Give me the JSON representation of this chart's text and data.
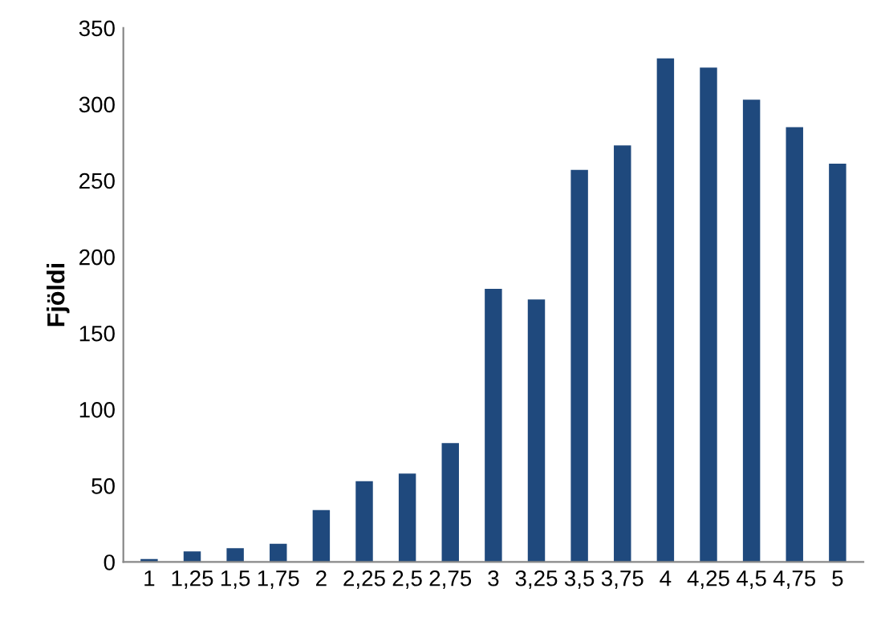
{
  "chart_data": {
    "type": "bar",
    "ylabel": "Fjöldi",
    "categories": [
      "1",
      "1,25",
      "1,5",
      "1,75",
      "2",
      "2,25",
      "2,5",
      "2,75",
      "3",
      "3,25",
      "3,5",
      "3,75",
      "4",
      "4,25",
      "4,5",
      "4,75",
      "5"
    ],
    "values": [
      2,
      7,
      9,
      12,
      34,
      53,
      58,
      78,
      179,
      172,
      257,
      273,
      330,
      324,
      303,
      285,
      261
    ],
    "color": "#1f497d",
    "ylim": [
      0,
      350
    ],
    "yticks": [
      0,
      50,
      100,
      150,
      200,
      250,
      300,
      350
    ],
    "grid": false
  }
}
